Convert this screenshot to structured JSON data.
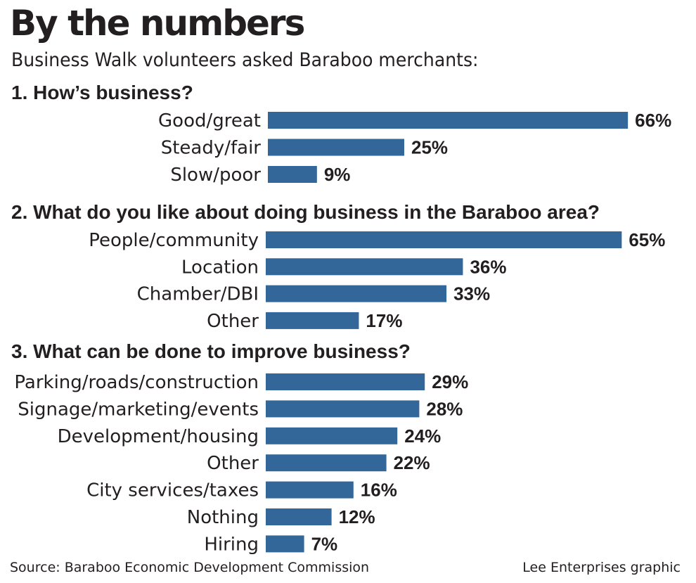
{
  "header": {
    "title": "By the numbers",
    "subtitle": "Business Walk volunteers asked Baraboo merchants:"
  },
  "footer": {
    "source": "Source: Baraboo Economic Development Commission",
    "credit": "Lee Enterprises graphic"
  },
  "colors": {
    "bar": "#336699",
    "text": "#231f20"
  },
  "chart_data": [
    {
      "type": "bar",
      "orientation": "horizontal",
      "title": "1. How’s business?",
      "categories": [
        "Good/great",
        "Steady/fair",
        "Slow/poor"
      ],
      "values": [
        66,
        25,
        9
      ],
      "labels": [
        "66%",
        "25%",
        "9%"
      ],
      "unit": "%"
    },
    {
      "type": "bar",
      "orientation": "horizontal",
      "title": "2. What do you like about doing business in the Baraboo area?",
      "categories": [
        "People/community",
        "Location",
        "Chamber/DBI",
        "Other"
      ],
      "values": [
        65,
        36,
        33,
        17
      ],
      "labels": [
        "65%",
        "36%",
        "33%",
        "17%"
      ],
      "unit": "%"
    },
    {
      "type": "bar",
      "orientation": "horizontal",
      "title": "3. What can be done to improve business?",
      "categories": [
        "Parking/roads/construction",
        "Signage/marketing/events",
        "Development/housing",
        "Other",
        "City services/taxes",
        "Nothing",
        "Hiring"
      ],
      "values": [
        29,
        28,
        24,
        22,
        16,
        12,
        7
      ],
      "labels": [
        "29%",
        "28%",
        "24%",
        "22%",
        "16%",
        "12%",
        "7%"
      ],
      "unit": "%"
    }
  ]
}
